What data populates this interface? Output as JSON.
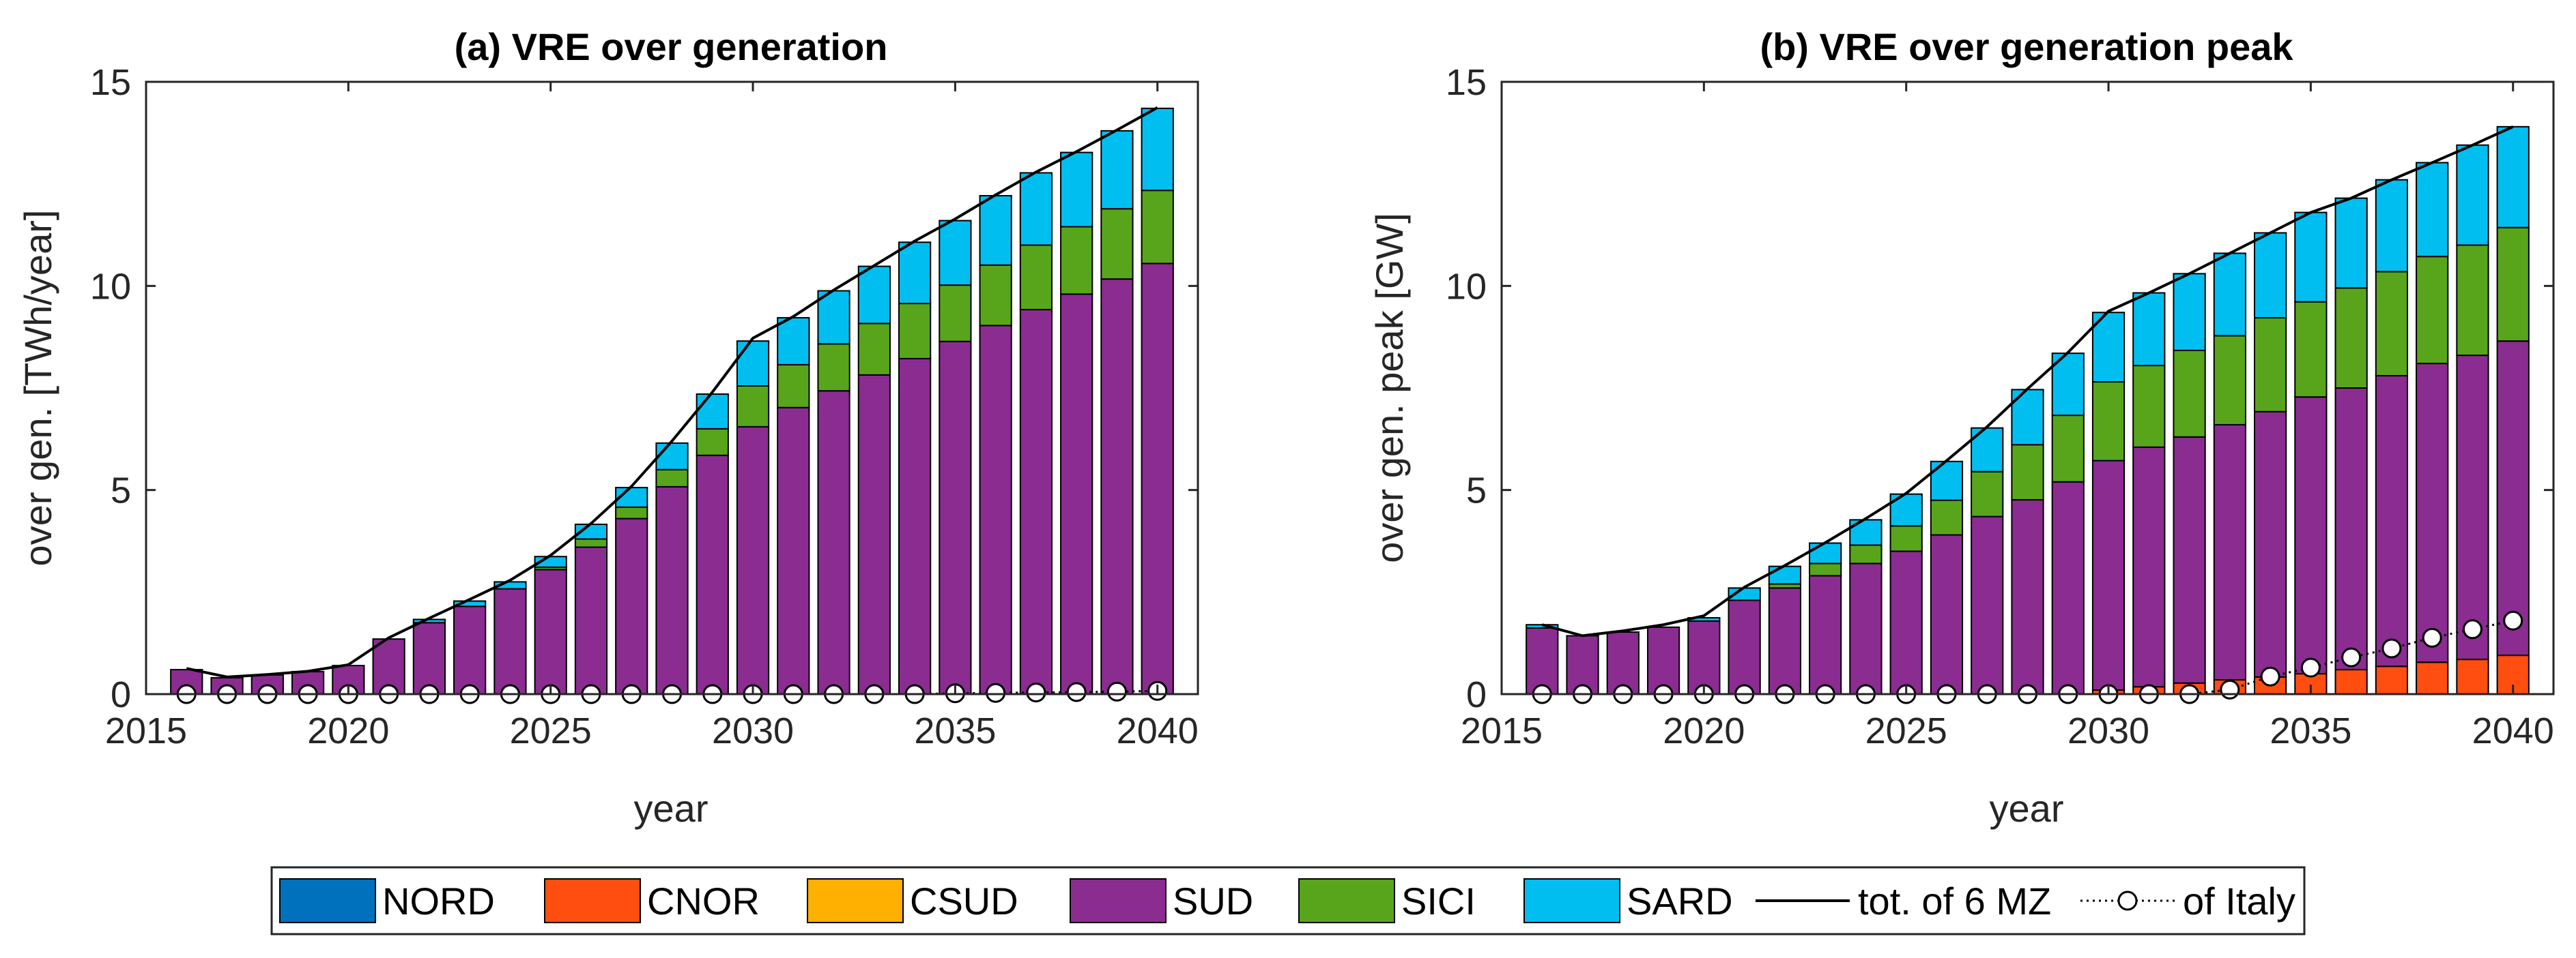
{
  "chart_data": [
    {
      "type": "bar",
      "stacked": true,
      "title": "(a) VRE over generation",
      "xlabel": "year",
      "ylabel": "over gen. [TWh/year]",
      "xlim": [
        2015,
        2041
      ],
      "ylim": [
        0,
        15
      ],
      "xticks": [
        2015,
        2020,
        2025,
        2030,
        2035,
        2040
      ],
      "xtick_labels": [
        "2015",
        "2020",
        "2025",
        "2030",
        "2035",
        "2040"
      ],
      "yticks": [
        0,
        5,
        10,
        15
      ],
      "ytick_labels": [
        "0",
        "5",
        "10",
        "15"
      ],
      "years": [
        2016,
        2017,
        2018,
        2019,
        2020,
        2021,
        2022,
        2023,
        2024,
        2025,
        2026,
        2027,
        2028,
        2029,
        2030,
        2031,
        2032,
        2033,
        2034,
        2035,
        2036,
        2037,
        2038,
        2039,
        2040
      ],
      "series": [
        {
          "name": "NORD",
          "values": [
            0,
            0,
            0,
            0,
            0,
            0,
            0,
            0,
            0,
            0,
            0,
            0,
            0,
            0,
            0,
            0,
            0,
            0,
            0,
            0,
            0,
            0,
            0,
            0,
            0
          ]
        },
        {
          "name": "CNOR",
          "values": [
            0,
            0,
            0,
            0,
            0,
            0,
            0,
            0,
            0,
            0,
            0,
            0,
            0,
            0,
            0,
            0,
            0,
            0,
            0,
            0,
            0,
            0,
            0,
            0,
            0
          ]
        },
        {
          "name": "CSUD",
          "values": [
            0,
            0,
            0,
            0,
            0,
            0,
            0,
            0,
            0,
            0,
            0,
            0,
            0,
            0,
            0,
            0,
            0,
            0,
            0,
            0,
            0,
            0,
            0,
            0,
            0
          ]
        },
        {
          "name": "SUD",
          "values": [
            0.6,
            0.4,
            0.47,
            0.55,
            0.7,
            1.35,
            1.75,
            2.15,
            2.58,
            3.05,
            3.6,
            4.3,
            5.08,
            5.85,
            6.55,
            7.02,
            7.43,
            7.82,
            8.22,
            8.64,
            9.03,
            9.42,
            9.8,
            10.17,
            10.55
          ]
        },
        {
          "name": "SICI",
          "values": [
            0,
            0,
            0,
            0,
            0,
            0,
            0,
            0,
            0,
            0.06,
            0.2,
            0.28,
            0.42,
            0.65,
            1.0,
            1.05,
            1.15,
            1.26,
            1.35,
            1.38,
            1.48,
            1.58,
            1.65,
            1.72,
            1.79
          ]
        },
        {
          "name": "SARD",
          "values": [
            0,
            0,
            0,
            0,
            0,
            0,
            0.08,
            0.13,
            0.17,
            0.26,
            0.36,
            0.48,
            0.65,
            0.85,
            1.1,
            1.15,
            1.3,
            1.4,
            1.5,
            1.58,
            1.7,
            1.77,
            1.82,
            1.91,
            2.01
          ]
        }
      ],
      "tot_6MZ": [
        0.63,
        0.42,
        0.48,
        0.56,
        0.72,
        1.38,
        1.86,
        2.32,
        2.79,
        3.4,
        4.18,
        5.09,
        6.2,
        7.4,
        8.72,
        9.25,
        9.9,
        10.5,
        11.1,
        11.64,
        12.23,
        12.79,
        13.29,
        13.82,
        14.37
      ],
      "italy": [
        0,
        0,
        0,
        0,
        0,
        0,
        0,
        0,
        0,
        0,
        0,
        0,
        0,
        0,
        0,
        0,
        0,
        0,
        0,
        0.02,
        0.03,
        0.04,
        0.05,
        0.06,
        0.08
      ]
    },
    {
      "type": "bar",
      "stacked": true,
      "title": "(b) VRE over generation peak",
      "xlabel": "year",
      "ylabel": "over gen. peak [GW]",
      "xlim": [
        2015,
        2041
      ],
      "ylim": [
        0,
        15
      ],
      "xticks": [
        2015,
        2020,
        2025,
        2030,
        2035,
        2040
      ],
      "xtick_labels": [
        "2015",
        "2020",
        "2025",
        "2030",
        "2035",
        "2040"
      ],
      "yticks": [
        0,
        5,
        10,
        15
      ],
      "ytick_labels": [
        "0",
        "5",
        "10",
        "15"
      ],
      "years": [
        2016,
        2017,
        2018,
        2019,
        2020,
        2021,
        2022,
        2023,
        2024,
        2025,
        2026,
        2027,
        2028,
        2029,
        2030,
        2031,
        2032,
        2033,
        2034,
        2035,
        2036,
        2037,
        2038,
        2039,
        2040
      ],
      "series": [
        {
          "name": "NORD",
          "values": [
            0,
            0,
            0,
            0,
            0,
            0,
            0,
            0,
            0,
            0,
            0,
            0,
            0,
            0,
            0,
            0,
            0,
            0,
            0,
            0,
            0,
            0,
            0,
            0,
            0
          ]
        },
        {
          "name": "CNOR",
          "values": [
            0,
            0,
            0,
            0,
            0,
            0,
            0,
            0,
            0,
            0,
            0,
            0,
            0,
            0,
            0.1,
            0.18,
            0.27,
            0.35,
            0.42,
            0.5,
            0.6,
            0.68,
            0.78,
            0.85,
            0.95
          ]
        },
        {
          "name": "CSUD",
          "values": [
            0,
            0,
            0,
            0,
            0,
            0,
            0,
            0,
            0,
            0,
            0,
            0,
            0,
            0,
            0,
            0,
            0,
            0,
            0,
            0,
            0,
            0,
            0,
            0,
            0
          ]
        },
        {
          "name": "SUD",
          "values": [
            1.62,
            1.43,
            1.52,
            1.64,
            1.79,
            2.3,
            2.6,
            2.9,
            3.2,
            3.5,
            3.9,
            4.35,
            4.76,
            5.2,
            5.62,
            5.87,
            6.03,
            6.25,
            6.5,
            6.78,
            6.9,
            7.12,
            7.32,
            7.45,
            7.7
          ]
        },
        {
          "name": "SICI",
          "values": [
            0,
            0,
            0,
            0,
            0,
            0,
            0.1,
            0.3,
            0.45,
            0.62,
            0.85,
            1.1,
            1.35,
            1.63,
            1.93,
            2.0,
            2.12,
            2.18,
            2.3,
            2.33,
            2.45,
            2.55,
            2.62,
            2.7,
            2.78
          ]
        },
        {
          "name": "SARD",
          "values": [
            0.08,
            0,
            0,
            0,
            0.08,
            0.3,
            0.43,
            0.5,
            0.62,
            0.78,
            0.95,
            1.07,
            1.35,
            1.52,
            1.7,
            1.78,
            1.88,
            2.02,
            2.08,
            2.19,
            2.2,
            2.25,
            2.3,
            2.45,
            2.47
          ]
        }
      ],
      "tot_6MZ": [
        1.7,
        1.43,
        1.55,
        1.7,
        1.92,
        2.62,
        3.15,
        3.71,
        4.3,
        4.92,
        5.72,
        6.55,
        7.48,
        8.37,
        9.38,
        9.83,
        10.3,
        10.8,
        11.3,
        11.8,
        12.15,
        12.6,
        13.02,
        13.45,
        13.9
      ],
      "italy": [
        0,
        0,
        0,
        0,
        0,
        0,
        0,
        0,
        0,
        0,
        0,
        0,
        0,
        0,
        0,
        0,
        0,
        0.11,
        0.43,
        0.65,
        0.9,
        1.12,
        1.38,
        1.59,
        1.8
      ]
    }
  ],
  "colors": {
    "NORD": "#0072BD",
    "CNOR": "#FF4E10",
    "CSUD": "#FFB000",
    "SUD": "#8B2C91",
    "SICI": "#58A51B",
    "SARD": "#00BFF0"
  },
  "legend": {
    "entries": [
      {
        "key": "NORD",
        "label": "NORD",
        "kind": "patch"
      },
      {
        "key": "CNOR",
        "label": "CNOR",
        "kind": "patch"
      },
      {
        "key": "CSUD",
        "label": "CSUD",
        "kind": "patch"
      },
      {
        "key": "SUD",
        "label": "SUD",
        "kind": "patch"
      },
      {
        "key": "SICI",
        "label": "SICI",
        "kind": "patch"
      },
      {
        "key": "SARD",
        "label": "SARD",
        "kind": "patch"
      },
      {
        "key": "tot",
        "label": "tot. of 6 MZ",
        "kind": "line"
      },
      {
        "key": "italy",
        "label": "of Italy",
        "kind": "dotted-marker"
      }
    ]
  }
}
